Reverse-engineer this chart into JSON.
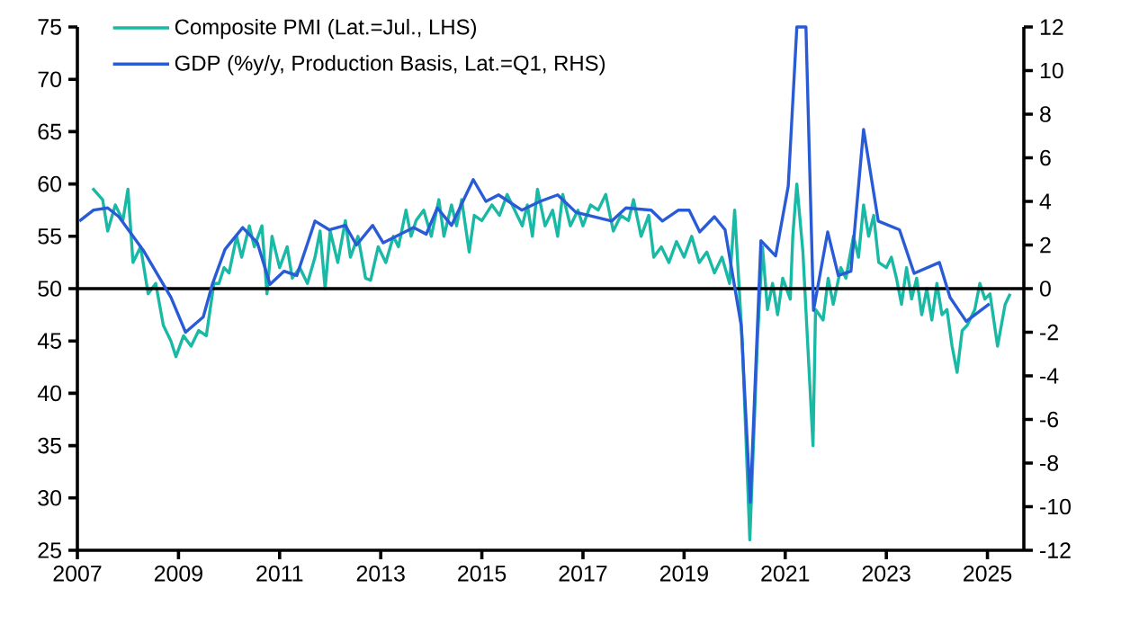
{
  "chart_data": {
    "type": "line",
    "legend": "top left",
    "xlim": [
      2007,
      2025.72
    ],
    "xticks": [
      2007,
      2009,
      2011,
      2013,
      2015,
      2017,
      2019,
      2021,
      2023,
      2025
    ],
    "ylim": [
      25,
      75
    ],
    "yticks": [
      25,
      30,
      35,
      40,
      45,
      50,
      55,
      60,
      65,
      70,
      75
    ],
    "y2lim": [
      -12,
      12
    ],
    "y2ticks": [
      -12,
      -10,
      -8,
      -6,
      -4,
      -2,
      0,
      2,
      4,
      6,
      8,
      10,
      12
    ],
    "ref_lines": [
      {
        "axis": "y",
        "value": 50,
        "color": "#000000"
      }
    ],
    "series": [
      {
        "name": "Composite PMI (Lat.=Jul., LHS)",
        "color": "#19b9a5",
        "x": [
          2007.3,
          2007.5,
          2007.6,
          2007.75,
          2007.9,
          2008.0,
          2008.1,
          2008.25,
          2008.4,
          2008.55,
          2008.7,
          2008.85,
          2008.95,
          2009.1,
          2009.25,
          2009.4,
          2009.55,
          2009.7,
          2009.8,
          2009.9,
          2010.0,
          2010.15,
          2010.25,
          2010.4,
          2010.5,
          2010.65,
          2010.75,
          2010.85,
          2011.0,
          2011.15,
          2011.25,
          2011.4,
          2011.55,
          2011.7,
          2011.8,
          2011.9,
          2012.0,
          2012.15,
          2012.3,
          2012.4,
          2012.55,
          2012.7,
          2012.8,
          2012.95,
          2013.1,
          2013.25,
          2013.35,
          2013.5,
          2013.6,
          2013.7,
          2013.85,
          2014.0,
          2014.15,
          2014.25,
          2014.4,
          2014.5,
          2014.6,
          2014.75,
          2014.85,
          2015.0,
          2015.2,
          2015.35,
          2015.5,
          2015.65,
          2015.8,
          2015.9,
          2016.0,
          2016.1,
          2016.25,
          2016.4,
          2016.5,
          2016.6,
          2016.75,
          2016.9,
          2017.0,
          2017.15,
          2017.3,
          2017.45,
          2017.6,
          2017.75,
          2017.9,
          2018.0,
          2018.15,
          2018.3,
          2018.4,
          2018.55,
          2018.7,
          2018.85,
          2019.0,
          2019.15,
          2019.3,
          2019.45,
          2019.6,
          2019.75,
          2019.9,
          2020.0,
          2020.15,
          2020.3,
          2020.45,
          2020.55,
          2020.65,
          2020.75,
          2020.85,
          2020.95,
          2021.1,
          2021.15,
          2021.23,
          2021.35,
          2021.55,
          2021.6,
          2021.75,
          2021.85,
          2021.95,
          2022.1,
          2022.2,
          2022.35,
          2022.45,
          2022.55,
          2022.65,
          2022.75,
          2022.85,
          2023.0,
          2023.1,
          2023.2,
          2023.3,
          2023.4,
          2023.5,
          2023.6,
          2023.7,
          2023.8,
          2023.9,
          2024.0,
          2024.1,
          2024.2,
          2024.3,
          2024.4,
          2024.5,
          2024.6,
          2024.75,
          2024.85,
          2024.95,
          2025.05,
          2025.2,
          2025.35,
          2025.45
        ],
        "values": [
          59.6,
          58.5,
          55.5,
          58,
          56.5,
          59.5,
          52.5,
          54,
          49.5,
          50.5,
          46.5,
          45,
          43.5,
          45.5,
          44.5,
          46,
          45.5,
          50.5,
          50.5,
          52,
          51.5,
          55,
          53,
          56,
          54,
          56,
          49.5,
          55,
          52,
          54,
          51,
          52,
          50.5,
          53,
          55.5,
          50,
          55.5,
          52.5,
          56.5,
          53,
          55,
          51,
          50.8,
          54,
          52.5,
          55,
          54,
          57.5,
          55,
          56.5,
          57.5,
          55,
          58.5,
          55,
          58,
          56,
          58.5,
          53.5,
          57,
          56.5,
          58,
          57,
          59,
          57.5,
          56,
          58,
          55,
          59.5,
          56,
          57.5,
          55,
          59,
          56,
          57.5,
          56,
          58,
          57.5,
          59,
          55.5,
          57,
          56.5,
          58.5,
          55,
          57,
          53,
          54,
          52.5,
          54.5,
          53,
          55,
          52.5,
          53.5,
          51.5,
          53,
          50.5,
          57.5,
          45,
          26,
          45,
          54,
          48,
          50.5,
          47.5,
          51,
          49,
          55,
          60,
          53.5,
          35,
          48,
          47,
          51,
          48.5,
          52,
          51,
          55,
          53,
          58,
          55,
          57,
          52.5,
          52,
          53,
          51,
          48.5,
          52,
          49,
          51,
          47.5,
          50,
          47,
          50.5,
          47.5,
          48,
          44.5,
          42,
          46,
          46.5,
          48,
          50.5,
          49,
          49.5,
          44.5,
          48.5,
          49.5
        ]
      },
      {
        "name": "GDP (%y/y, Production Basis, Lat.=Q1, RHS)",
        "color": "#2a5bd7",
        "axis": "y2",
        "x": [
          2007.04,
          2007.32,
          2007.6,
          2007.82,
          2008.32,
          2008.85,
          2009.14,
          2009.49,
          2009.67,
          2009.92,
          2010.27,
          2010.56,
          2010.81,
          2011.09,
          2011.34,
          2011.7,
          2011.98,
          2012.3,
          2012.52,
          2012.84,
          2013.05,
          2013.65,
          2013.9,
          2014.12,
          2014.4,
          2014.83,
          2015.08,
          2015.33,
          2015.79,
          2016.15,
          2016.5,
          2016.86,
          2017.57,
          2017.85,
          2018.35,
          2018.57,
          2018.89,
          2019.1,
          2019.31,
          2019.6,
          2019.81,
          2020.13,
          2020.31,
          2020.52,
          2020.81,
          2021.06,
          2021.23,
          2021.41,
          2021.56,
          2021.84,
          2022.05,
          2022.3,
          2022.55,
          2022.84,
          2023.26,
          2023.55,
          2024.05,
          2024.26,
          2024.58,
          2025.04
        ],
        "values": [
          3.1,
          3.6,
          3.7,
          3.3,
          1.7,
          -0.4,
          -2.0,
          -1.3,
          0.2,
          1.8,
          2.8,
          2.1,
          0.2,
          0.8,
          0.6,
          3.1,
          2.7,
          2.9,
          2.0,
          2.9,
          2.1,
          2.8,
          2.5,
          3.7,
          2.9,
          5.0,
          4.0,
          4.3,
          3.6,
          4.0,
          4.3,
          3.5,
          3.1,
          3.7,
          3.6,
          3.1,
          3.6,
          3.6,
          2.6,
          3.3,
          2.7,
          -1.7,
          -9.8,
          2.2,
          1.5,
          4.7,
          12,
          12,
          -1.0,
          2.6,
          0.6,
          0.8,
          7.3,
          3.1,
          2.7,
          0.7,
          1.2,
          -0.4,
          -1.5,
          -0.7
        ]
      }
    ]
  }
}
